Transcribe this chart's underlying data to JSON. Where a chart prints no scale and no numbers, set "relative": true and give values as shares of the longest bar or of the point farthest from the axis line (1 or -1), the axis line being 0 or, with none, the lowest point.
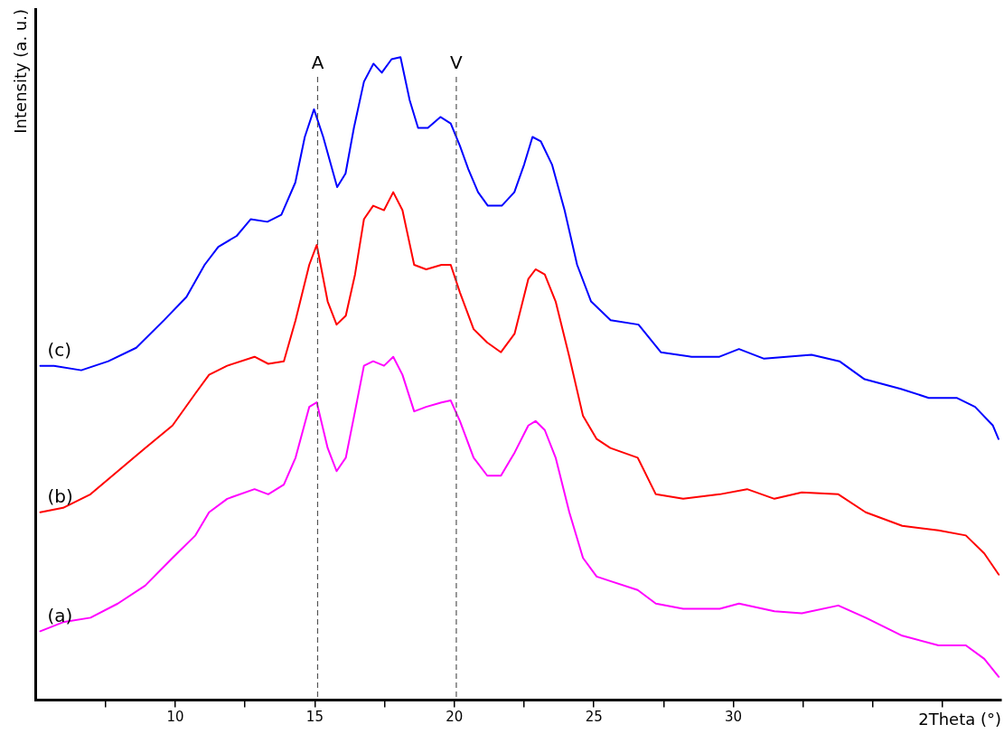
{
  "chart_data": {
    "type": "line",
    "xlabel": "2Theta (°)",
    "ylabel": "Intensity (a. u.)",
    "relative": true,
    "legend": false,
    "grid": false,
    "marker": "none",
    "line_style": "solid",
    "tick_labels": "x",
    "xlim": [
      5,
      39.6
    ],
    "xticks": [
      {
        "value": 7.5,
        "label": null
      },
      10,
      {
        "value": 12.5,
        "label": null
      },
      15,
      {
        "value": 17.5,
        "label": null
      },
      20,
      {
        "value": 22.5,
        "label": null
      },
      25,
      {
        "value": 27.5,
        "label": null
      },
      30,
      {
        "value": 32.5,
        "label": null
      },
      {
        "value": 35,
        "label": null
      },
      {
        "value": 37.5,
        "label": null
      }
    ],
    "ref_lines": [
      {
        "axis": "x",
        "value": 15.1,
        "label": "A",
        "color": "#555555",
        "line_style": "dashed"
      },
      {
        "axis": "x",
        "value": 20.07,
        "label": "V",
        "color": "#555555",
        "line_style": "dashed"
      }
    ],
    "series": [
      {
        "name": "(a)",
        "color": "#ff00ff",
        "x": [
          5.16,
          5.98,
          6.96,
          7.94,
          8.92,
          9.9,
          10.72,
          11.21,
          11.86,
          12.84,
          13.33,
          13.89,
          14.31,
          14.8,
          15.07,
          15.46,
          15.78,
          16.11,
          16.44,
          16.76,
          17.09,
          17.48,
          17.81,
          18.14,
          18.56,
          18.99,
          19.54,
          19.87,
          20.2,
          20.69,
          21.18,
          21.67,
          22.16,
          22.65,
          22.91,
          23.24,
          23.63,
          24.12,
          24.61,
          25.1,
          25.59,
          26.57,
          27.22,
          28.2,
          29.51,
          30.2,
          31.47,
          32.45,
          33.76,
          34.74,
          36.05,
          37.35,
          38.33,
          38.99,
          39.51
        ],
        "values": [
          0.107,
          0.121,
          0.128,
          0.15,
          0.178,
          0.221,
          0.256,
          0.292,
          0.313,
          0.328,
          0.32,
          0.335,
          0.377,
          0.456,
          0.463,
          0.392,
          0.356,
          0.377,
          0.449,
          0.52,
          0.527,
          0.52,
          0.534,
          0.506,
          0.449,
          0.456,
          0.463,
          0.466,
          0.434,
          0.377,
          0.349,
          0.349,
          0.385,
          0.427,
          0.434,
          0.42,
          0.377,
          0.292,
          0.221,
          0.192,
          0.185,
          0.171,
          0.15,
          0.142,
          0.142,
          0.15,
          0.138,
          0.135,
          0.147,
          0.128,
          0.1,
          0.085,
          0.085,
          0.064,
          0.036
        ]
      },
      {
        "name": "(b)",
        "color": "#ff0000",
        "x": [
          5.16,
          5.98,
          6.96,
          7.94,
          8.92,
          9.9,
          10.72,
          11.21,
          11.86,
          12.84,
          13.33,
          13.89,
          14.31,
          14.8,
          15.07,
          15.46,
          15.78,
          16.11,
          16.44,
          16.76,
          17.09,
          17.48,
          17.81,
          18.14,
          18.56,
          18.99,
          19.54,
          19.87,
          20.2,
          20.69,
          21.18,
          21.67,
          22.16,
          22.65,
          22.91,
          23.24,
          23.63,
          24.12,
          24.61,
          25.1,
          25.59,
          26.57,
          27.22,
          28.2,
          29.51,
          30.49,
          31.47,
          32.45,
          33.76,
          34.74,
          36.05,
          37.35,
          38.33,
          38.99,
          39.51
        ],
        "values": [
          0.292,
          0.299,
          0.32,
          0.356,
          0.392,
          0.427,
          0.477,
          0.506,
          0.52,
          0.534,
          0.523,
          0.527,
          0.591,
          0.677,
          0.708,
          0.62,
          0.584,
          0.598,
          0.662,
          0.748,
          0.769,
          0.762,
          0.79,
          0.762,
          0.677,
          0.67,
          0.677,
          0.677,
          0.634,
          0.577,
          0.556,
          0.541,
          0.57,
          0.655,
          0.67,
          0.662,
          0.62,
          0.534,
          0.442,
          0.406,
          0.392,
          0.377,
          0.32,
          0.313,
          0.32,
          0.328,
          0.313,
          0.323,
          0.32,
          0.292,
          0.271,
          0.264,
          0.256,
          0.228,
          0.195
        ]
      },
      {
        "name": "(c)",
        "color": "#0000ff",
        "x": [
          5.16,
          5.65,
          6.63,
          7.6,
          8.6,
          9.6,
          10.4,
          11.05,
          11.54,
          12.2,
          12.7,
          13.3,
          13.8,
          14.3,
          14.64,
          14.97,
          15.3,
          15.8,
          16.1,
          16.4,
          16.76,
          17.1,
          17.4,
          17.75,
          18.07,
          18.4,
          18.7,
          19.05,
          19.5,
          19.87,
          20.2,
          20.5,
          20.85,
          21.2,
          21.7,
          22.15,
          22.5,
          22.8,
          23.1,
          23.5,
          23.95,
          24.4,
          24.9,
          25.6,
          26.6,
          27.4,
          28.5,
          29.5,
          30.2,
          31.1,
          32.8,
          33.8,
          34.7,
          36.0,
          37.0,
          38.0,
          38.66,
          39.3,
          39.5
        ],
        "values": [
          0.52,
          0.52,
          0.513,
          0.527,
          0.548,
          0.591,
          0.627,
          0.677,
          0.705,
          0.722,
          0.748,
          0.744,
          0.755,
          0.805,
          0.876,
          0.919,
          0.876,
          0.798,
          0.819,
          0.89,
          0.962,
          0.99,
          0.976,
          0.997,
          1.0,
          0.933,
          0.89,
          0.89,
          0.907,
          0.897,
          0.862,
          0.826,
          0.79,
          0.769,
          0.769,
          0.79,
          0.833,
          0.876,
          0.869,
          0.833,
          0.762,
          0.677,
          0.62,
          0.591,
          0.584,
          0.541,
          0.534,
          0.534,
          0.546,
          0.531,
          0.537,
          0.527,
          0.499,
          0.484,
          0.47,
          0.47,
          0.456,
          0.427,
          0.406
        ]
      }
    ]
  }
}
